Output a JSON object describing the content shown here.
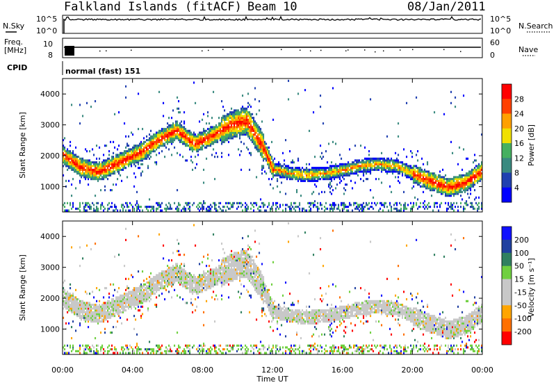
{
  "header": {
    "station": "Falkland Islands (fitACF)",
    "beam": "Beam 10",
    "date": "08/Jan/2011"
  },
  "noise_panel": {
    "left_label": "N.Sky",
    "right_label": "N.Search",
    "left_ticks": [
      "10^5",
      "10^0"
    ],
    "right_ticks": [
      "10^5",
      "10^0"
    ]
  },
  "freq_panel": {
    "left_label_line1": "Freq.",
    "left_label_line2": "[MHz]",
    "left_ticks": [
      "10",
      "8"
    ],
    "right_label": "Nave",
    "right_ticks": [
      "60",
      "0"
    ]
  },
  "cpid": {
    "label": "CPID",
    "value": "normal (fast) 151"
  },
  "chart_data": [
    {
      "type": "heatmap",
      "name": "power",
      "ylabel": "Slant Range [km]",
      "xlabel": "",
      "y_ticks": [
        "1000",
        "2000",
        "3000",
        "4000"
      ],
      "ylim": [
        180,
        4500
      ],
      "colorbar_label": "Power [dB]",
      "colorbar_ticks": [
        "4",
        "8",
        "12",
        "16",
        "20",
        "24",
        "28"
      ],
      "colors": [
        "#0000ff",
        "#2040b0",
        "#3a8a80",
        "#46b060",
        "#f0e000",
        "#ffa000",
        "#ff4000",
        "#ff0000"
      ]
    },
    {
      "type": "heatmap",
      "name": "velocity",
      "ylabel": "Slant Range [km]",
      "xlabel": "Time UT",
      "y_ticks": [
        "1000",
        "2000",
        "3000",
        "4000"
      ],
      "ylim": [
        180,
        4500
      ],
      "colorbar_label": "Velocity [m s⁻¹]",
      "colorbar_ticks": [
        "-200",
        "-100",
        "-50",
        "-15",
        "15",
        "50",
        "100",
        "200"
      ],
      "colors": [
        "#ff0000",
        "#ff7000",
        "#ffa500",
        "#c8c8c8",
        "#c8c8c8",
        "#70d040",
        "#308060",
        "#2040a0",
        "#1010ff"
      ]
    }
  ],
  "x_axis": {
    "ticks": [
      "00:00",
      "04:00",
      "08:00",
      "12:00",
      "16:00",
      "20:00",
      "00:00"
    ],
    "label": "Time UT"
  }
}
